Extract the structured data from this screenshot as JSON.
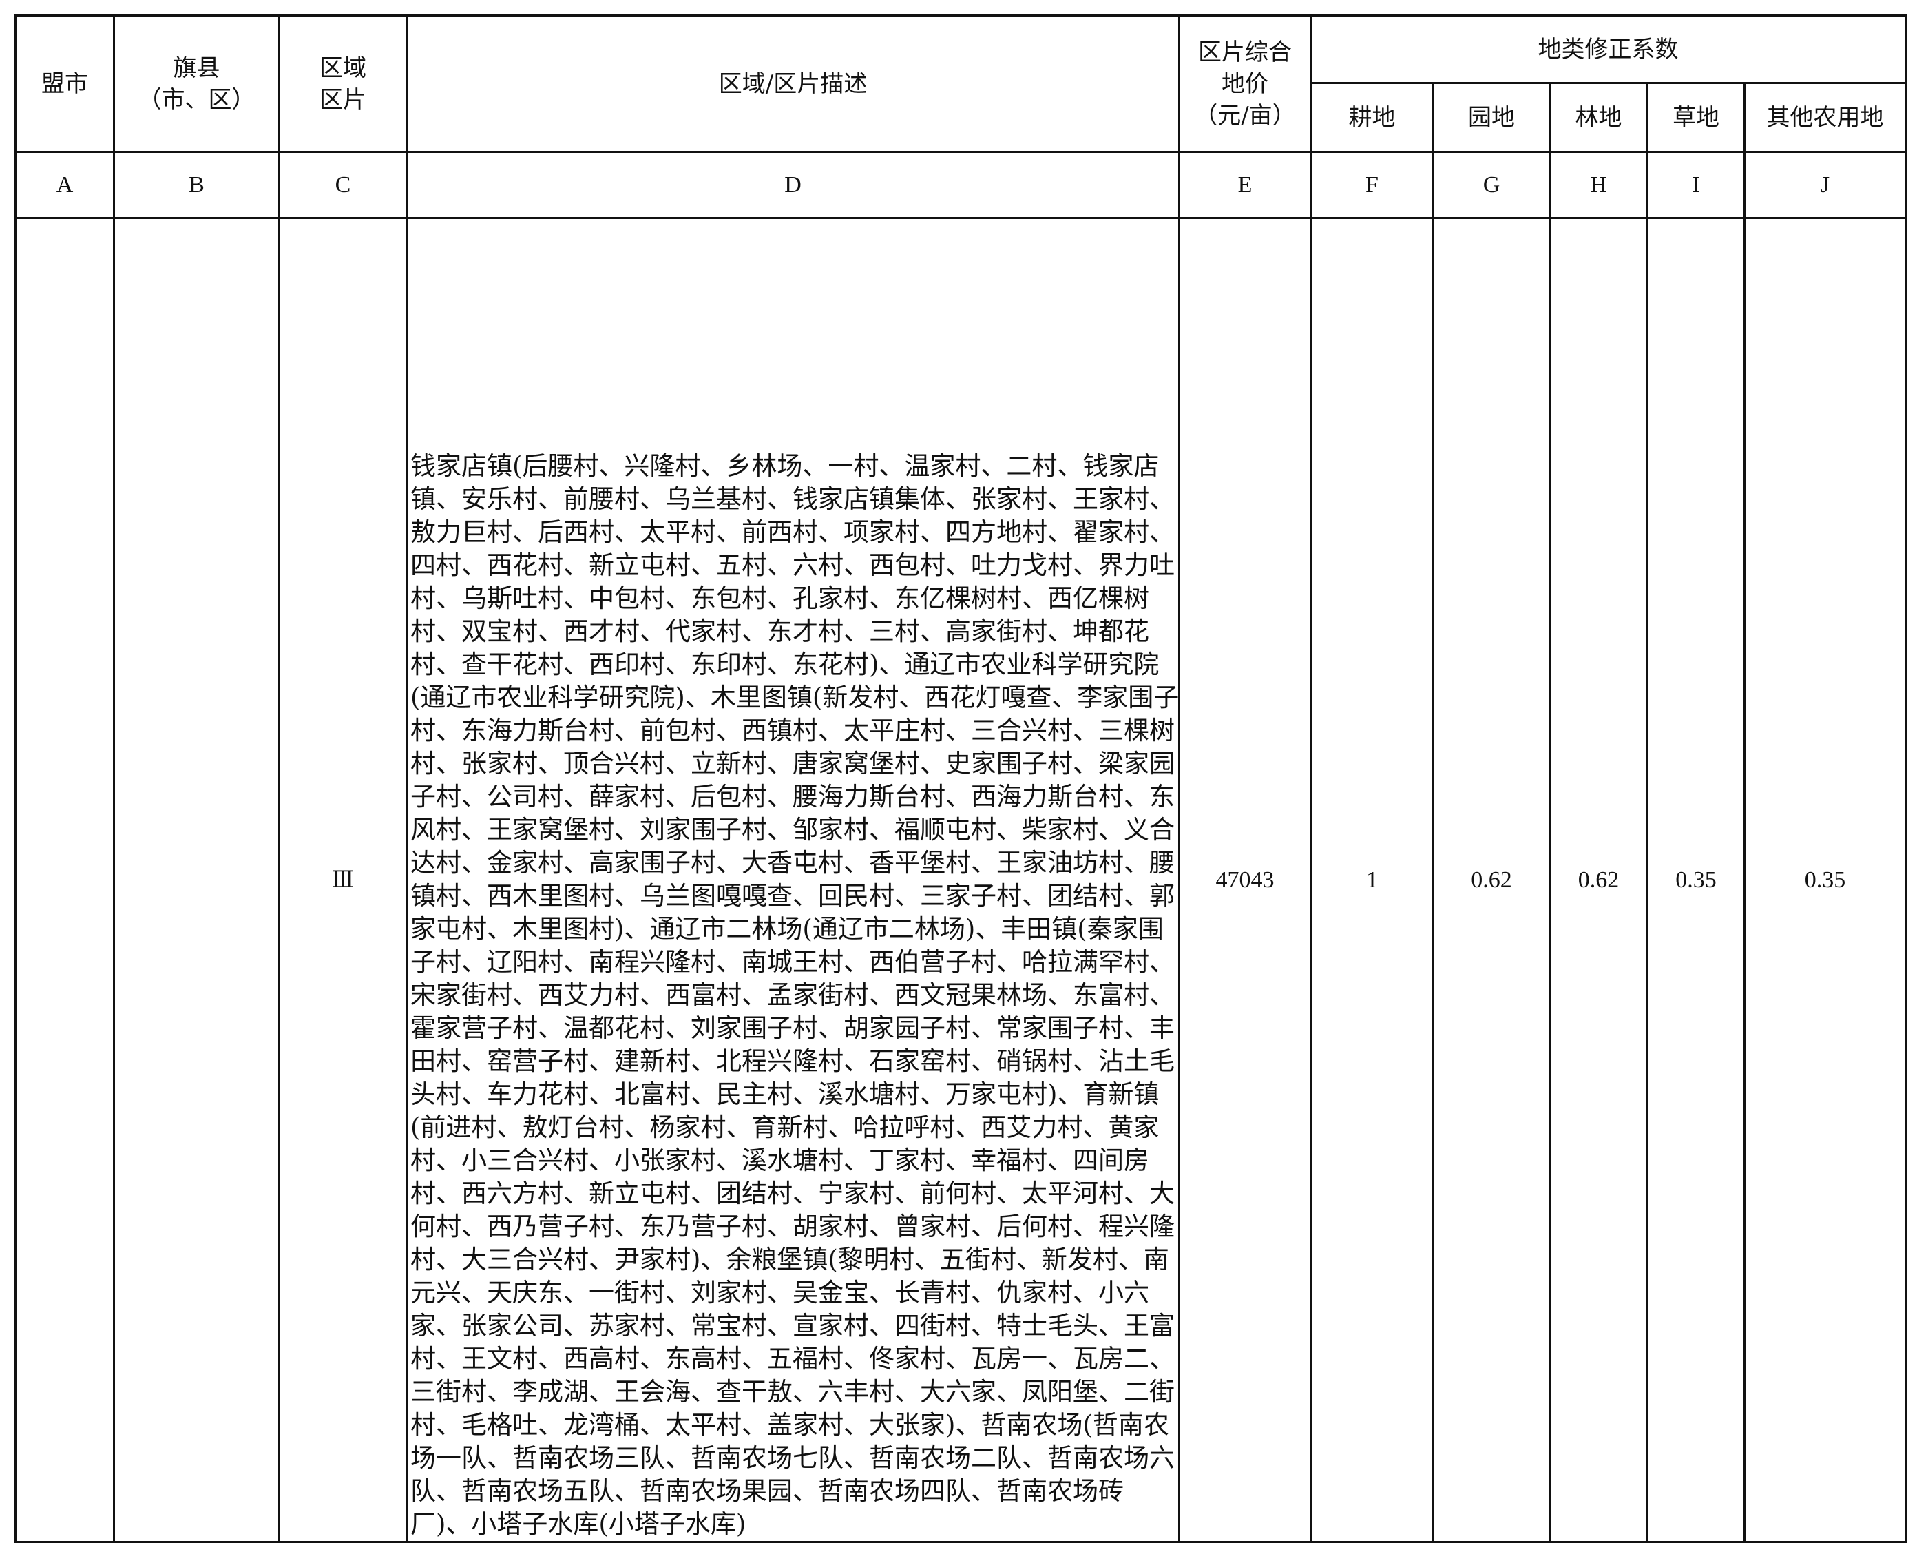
{
  "header": {
    "col_a": "盟市",
    "col_b": [
      "旗县",
      "（市、区）"
    ],
    "col_c": [
      "区域",
      "区片"
    ],
    "col_d": "区域/区片描述",
    "col_e": [
      "区片综合",
      "地价",
      "（元/亩）"
    ],
    "group_label": "地类修正系数",
    "col_f": "耕地",
    "col_g": "园地",
    "col_h": "林地",
    "col_i": "草地",
    "col_j": "其他农用地"
  },
  "letters": [
    "A",
    "B",
    "C",
    "D",
    "E",
    "F",
    "G",
    "H",
    "I",
    "J"
  ],
  "row": {
    "league_city": "",
    "county": "",
    "zone": "Ⅲ",
    "price": "47043",
    "f": "1",
    "g": "0.62",
    "h": "0.62",
    "i": "0.35",
    "j": "0.35",
    "description_lines": [
      "钱家店镇(后腰村、兴隆村、乡林场、一村、温家村、二村、钱家店",
      "镇、安乐村、前腰村、乌兰基村、钱家店镇集体、张家村、王家村、",
      "敖力巨村、后西村、太平村、前西村、项家村、四方地村、翟家村、",
      "四村、西花村、新立屯村、五村、六村、西包村、吐力戈村、界力吐",
      "村、乌斯吐村、中包村、东包村、孔家村、东亿棵树村、西亿棵树",
      "村、双宝村、西才村、代家村、东才村、三村、高家街村、坤都花",
      "村、查干花村、西印村、东印村、东花村)、通辽市农业科学研究院",
      "(通辽市农业科学研究院)、木里图镇(新发村、西花灯嘎查、李家围子",
      "村、东海力斯台村、前包村、西镇村、太平庄村、三合兴村、三棵树",
      "村、张家村、顶合兴村、立新村、唐家窝堡村、史家围子村、梁家园",
      "子村、公司村、薛家村、后包村、腰海力斯台村、西海力斯台村、东",
      "风村、王家窝堡村、刘家围子村、邹家村、福顺屯村、柴家村、义合",
      "达村、金家村、高家围子村、大香屯村、香平堡村、王家油坊村、腰",
      "镇村、西木里图村、乌兰图嘎嘎查、回民村、三家子村、团结村、郭",
      "家屯村、木里图村)、通辽市二林场(通辽市二林场)、丰田镇(秦家围",
      "子村、辽阳村、南程兴隆村、南城王村、西伯营子村、哈拉满罕村、",
      "宋家街村、西艾力村、西富村、孟家街村、西文冠果林场、东富村、",
      "霍家营子村、温都花村、刘家围子村、胡家园子村、常家围子村、丰",
      "田村、窑营子村、建新村、北程兴隆村、石家窑村、硝锅村、沾土毛",
      "头村、车力花村、北富村、民主村、溪水塘村、万家屯村)、育新镇",
      "(前进村、敖灯台村、杨家村、育新村、哈拉呼村、西艾力村、黄家",
      "村、小三合兴村、小张家村、溪水塘村、丁家村、幸福村、四间房",
      "村、西六方村、新立屯村、团结村、宁家村、前何村、太平河村、大",
      "何村、西乃营子村、东乃营子村、胡家村、曾家村、后何村、程兴隆",
      "村、大三合兴村、尹家村)、余粮堡镇(黎明村、五街村、新发村、南",
      "元兴、天庆东、一街村、刘家村、吴金宝、长青村、仇家村、小六",
      "家、张家公司、苏家村、常宝村、宣家村、四街村、特士毛头、王富",
      "村、王文村、西高村、东高村、五福村、佟家村、瓦房一、瓦房二、",
      "三街村、李成湖、王会海、查干敖、六丰村、大六家、凤阳堡、二街",
      "村、毛格吐、龙湾桶、太平村、盖家村、大张家)、哲南农场(哲南农",
      "场一队、哲南农场三队、哲南农场七队、哲南农场二队、哲南农场六",
      "队、哲南农场五队、哲南农场果园、哲南农场四队、哲南农场砖",
      "厂)、小塔子水库(小塔子水库)"
    ]
  }
}
